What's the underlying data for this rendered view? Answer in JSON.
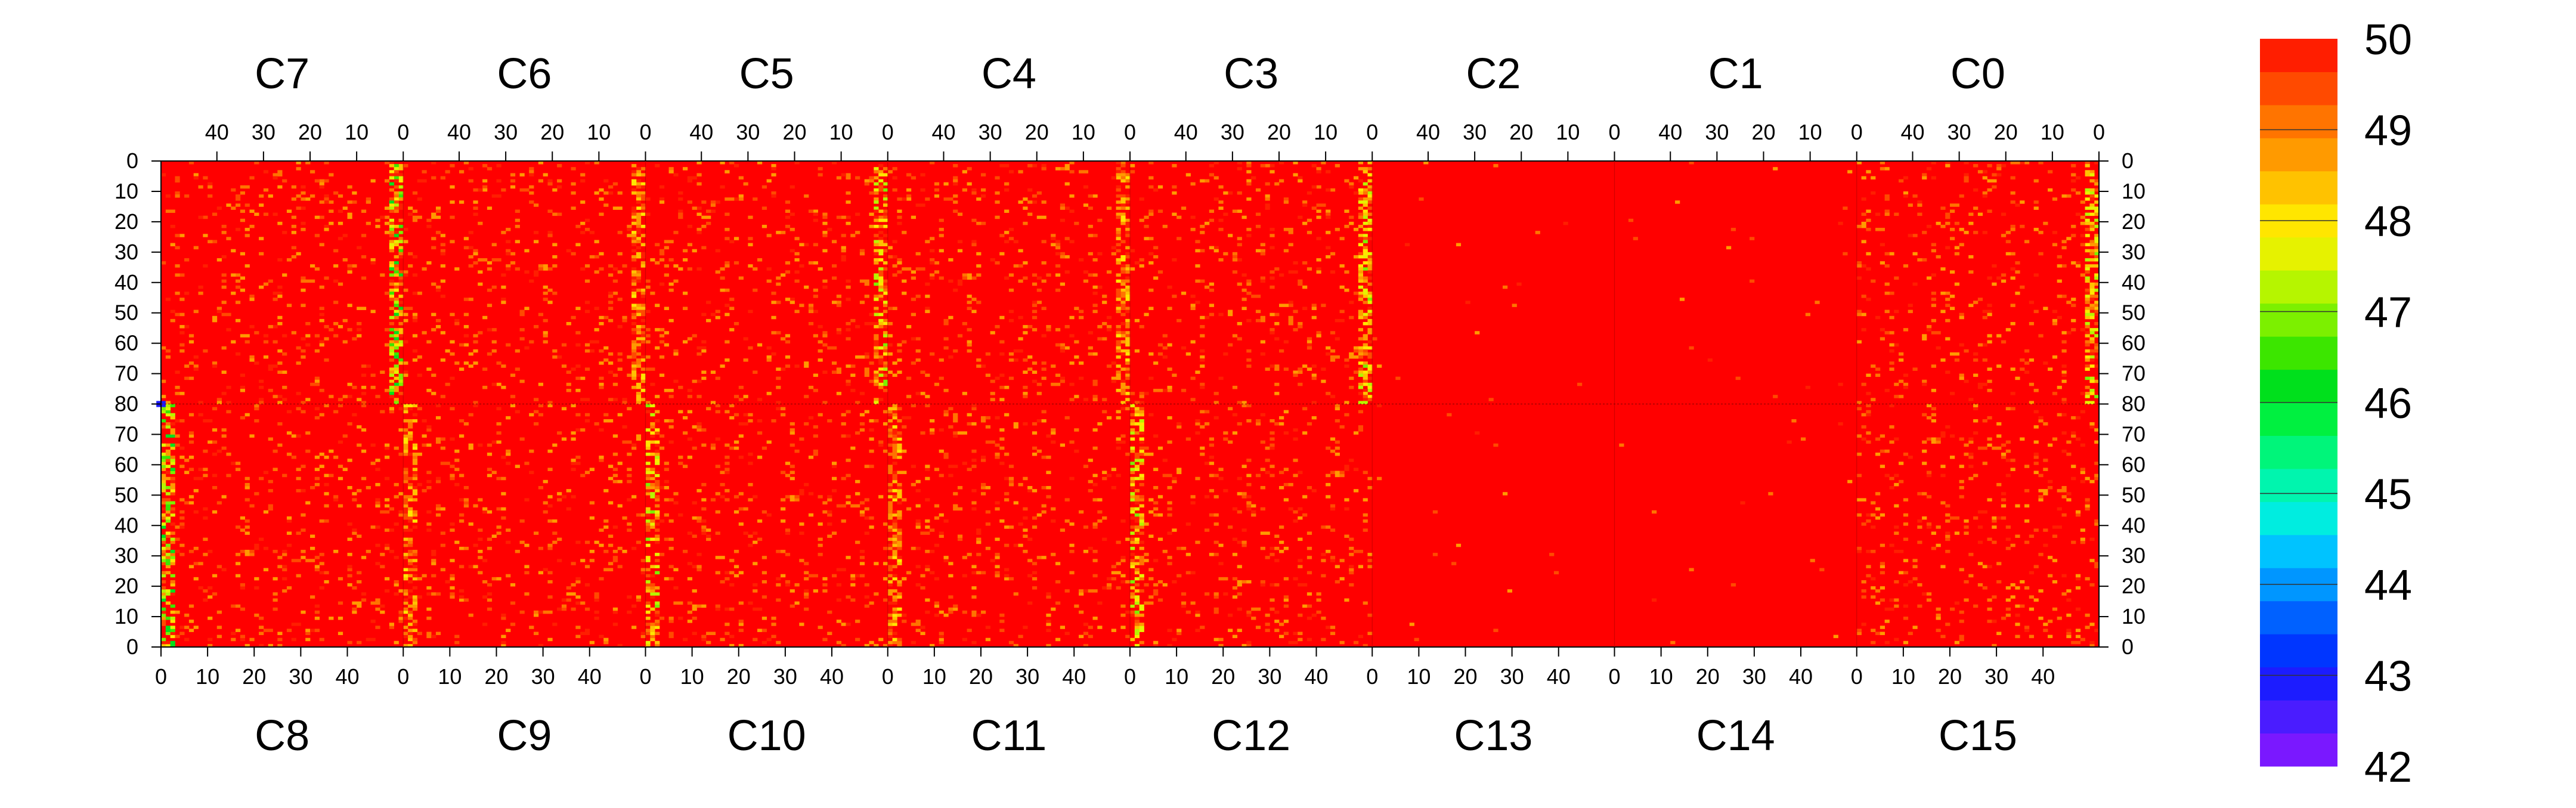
{
  "chart_data": {
    "type": "heatmap",
    "colorbar": {
      "min": 42,
      "max": 50,
      "tick_labels": [
        "42",
        "43",
        "44",
        "45",
        "46",
        "47",
        "48",
        "49",
        "50"
      ],
      "level_colors": [
        "#7a18ff",
        "#4a1cff",
        "#1c1cff",
        "#0036ff",
        "#0061ff",
        "#0096ff",
        "#00c3ff",
        "#00ede0",
        "#00f5ae",
        "#00f57a",
        "#00f040",
        "#00e01c",
        "#3ce600",
        "#7cf000",
        "#b6f500",
        "#e6f200",
        "#ffe600",
        "#ffc200",
        "#ff9a00",
        "#ff7400",
        "#ff4a00",
        "#ff1e00"
      ],
      "max_color": "#ff0000"
    },
    "top_chips": [
      "C7",
      "C6",
      "C5",
      "C4",
      "C3",
      "C2",
      "C1",
      "C0"
    ],
    "bottom_chips": [
      "C8",
      "C9",
      "C10",
      "C11",
      "C12",
      "C13",
      "C14",
      "C15"
    ],
    "chip_columns": 52,
    "top_column_ticks": [
      "40",
      "30",
      "20",
      "10",
      "0"
    ],
    "bottom_column_ticks": [
      "0",
      "10",
      "20",
      "30",
      "40"
    ],
    "top_row_ticks": [
      "0",
      "10",
      "20",
      "30",
      "40",
      "50",
      "60",
      "70",
      "80"
    ],
    "bottom_row_ticks": [
      "80",
      "70",
      "60",
      "50",
      "40",
      "30",
      "20",
      "10",
      "0"
    ],
    "rows_per_half": 80,
    "typical_value": 50,
    "noisy_chip_columns": [
      {
        "chips": [
          "C7",
          "C8"
        ],
        "columns": "0-3",
        "min_value": 46
      },
      {
        "chips": [
          "C6",
          "C9"
        ],
        "columns": "0-3",
        "min_value": 48
      },
      {
        "chips": [
          "C5",
          "C10"
        ],
        "columns": "0-3",
        "min_value": 47
      },
      {
        "chips": [
          "C4",
          "C11"
        ],
        "columns": "0-3",
        "min_value": 48
      },
      {
        "chips": [
          "C3",
          "C12"
        ],
        "columns": "0-3",
        "min_value": 47
      },
      {
        "chips": [
          "C0"
        ],
        "columns": "0-3",
        "min_value": 47
      }
    ],
    "quiet_region": {
      "chips": [
        "C2",
        "C13",
        "C1",
        "C14"
      ],
      "value": 50
    },
    "minimum_pixel": {
      "chip": "C8",
      "row": 80,
      "value": 43
    }
  }
}
